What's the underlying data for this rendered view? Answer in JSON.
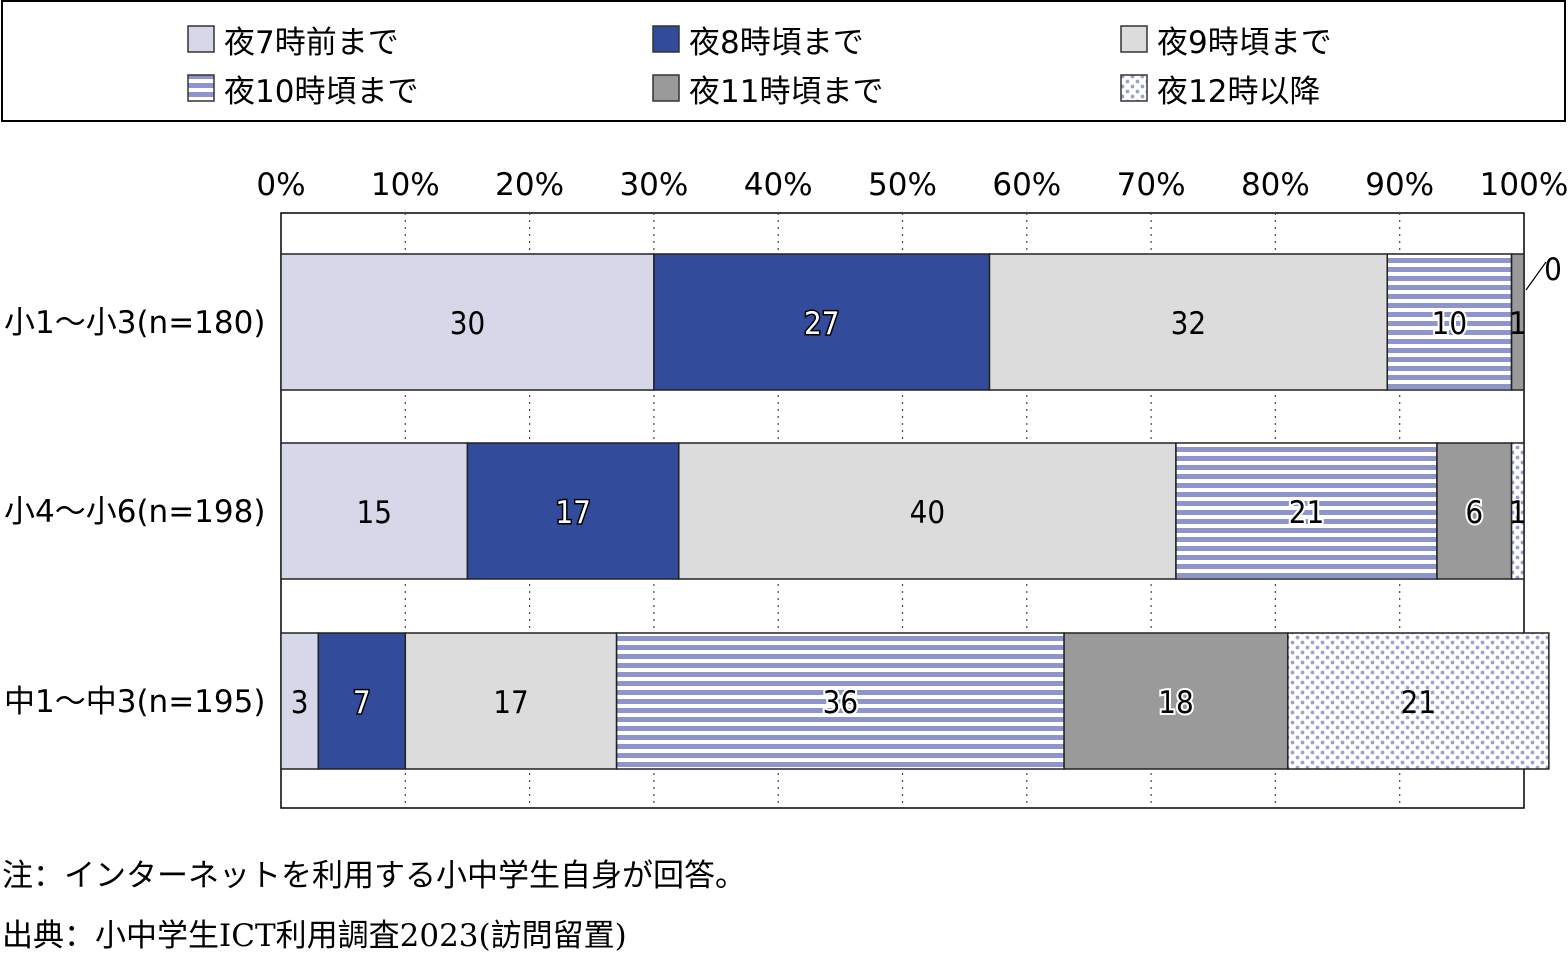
{
  "chart_data": {
    "type": "bar",
    "orientation": "horizontal",
    "stacked": true,
    "categories": [
      "小1～小3(n=180)",
      "小4～小6(n=198)",
      "中1～中3(n=195)"
    ],
    "series": [
      {
        "name": "夜7時前まで",
        "values": [
          30,
          15,
          3
        ],
        "color": "#d6d8ea",
        "pattern": "solid"
      },
      {
        "name": "夜8時頃まで",
        "values": [
          27,
          17,
          7
        ],
        "color": "#324b9a",
        "pattern": "solid"
      },
      {
        "name": "夜9時頃まで",
        "values": [
          32,
          40,
          17
        ],
        "color": "#dcdcdc",
        "pattern": "solid"
      },
      {
        "name": "夜10時頃まで",
        "values": [
          10,
          21,
          36
        ],
        "color": "#8d95cc",
        "pattern": "stripes"
      },
      {
        "name": "夜11時頃まで",
        "values": [
          1,
          6,
          18
        ],
        "color": "#9a9a9a",
        "pattern": "solid"
      },
      {
        "name": "夜12時以降",
        "values": [
          0,
          1,
          21
        ],
        "color": "#a7acd8",
        "pattern": "dots"
      }
    ],
    "xlim": [
      0,
      100
    ],
    "x_ticks": [
      "0%",
      "10%",
      "20%",
      "30%",
      "40%",
      "50%",
      "60%",
      "70%",
      "80%",
      "90%",
      "100%"
    ],
    "grid": "vertical-dotted",
    "legend_position": "top"
  },
  "notes": [
    "注：インターネットを利用する小中学生自身が回答。",
    "出典：小中学生ICT利用調査2023(訪問留置)"
  ]
}
